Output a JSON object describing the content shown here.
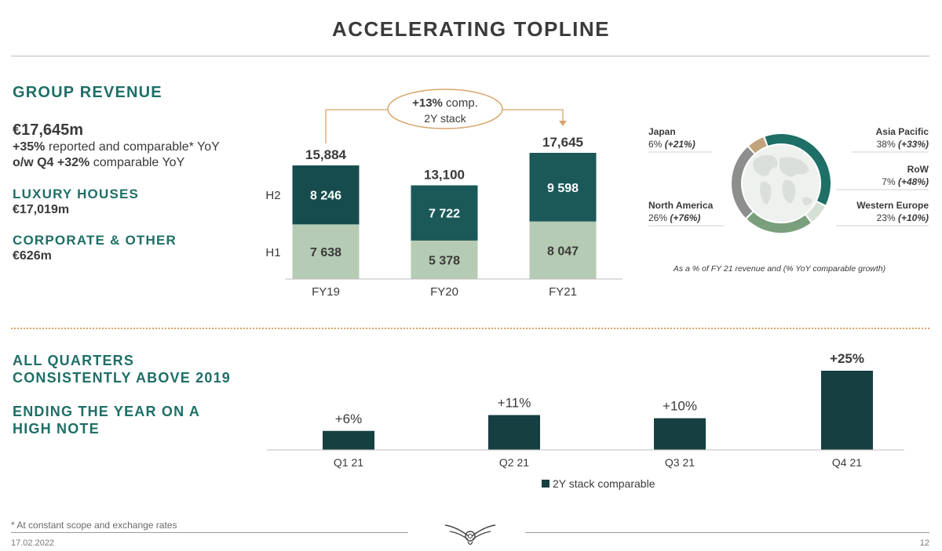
{
  "title": "ACCELERATING TOPLINE",
  "left_panel": {
    "group_revenue_heading": "GROUP REVENUE",
    "group_revenue_value": "€17,645m",
    "line1_bold": "+35%",
    "line1_rest": " reported and comparable* YoY",
    "line2_bold": "o/w Q4 +32%",
    "line2_rest": " comparable YoY",
    "luxury_heading": "LUXURY HOUSES",
    "luxury_value": "€17,019m",
    "corporate_heading": "CORPORATE & OTHER",
    "corporate_value": "€626m"
  },
  "bottom_left": {
    "heading1_line1": "ALL QUARTERS",
    "heading1_line2": "CONSISTENTLY ABOVE 2019",
    "heading2_line1": "ENDING THE YEAR ON A",
    "heading2_line2": "HIGH NOTE"
  },
  "stack_callout": {
    "bold": "+13%",
    "rest": " comp.",
    "line2": "2Y stack"
  },
  "colors": {
    "h2": "#1b5959",
    "h2_dark": "#174c4e",
    "h1": "#b6cbb3",
    "accent_teal": "#1e6f66",
    "quarter_bar": "#163f42",
    "callout": "#d8a46a",
    "asia_pacific": "#1e6f66",
    "row": "#d7e0d6",
    "western_europe": "#7a9f7c",
    "north_america": "#8e8e8e",
    "japan": "#c2a27b"
  },
  "donut": {
    "footnote": "As a % of FY 21 revenue and (% YoY comparable growth)",
    "regions": [
      {
        "name": "Asia Pacific",
        "share": "38%",
        "growth": "(+33%)"
      },
      {
        "name": "RoW",
        "share": "7%",
        "growth": "(+48%)"
      },
      {
        "name": "Western Europe",
        "share": "23%",
        "growth": "(+10%)"
      },
      {
        "name": "North America",
        "share": "26%",
        "growth": "(+76%)"
      },
      {
        "name": "Japan",
        "share": "6%",
        "growth": "(+21%)"
      }
    ]
  },
  "chart_data": [
    {
      "type": "bar",
      "stacked": true,
      "categories": [
        "FY19",
        "FY20",
        "FY21"
      ],
      "series": [
        {
          "name": "H1",
          "values": [
            7638,
            5378,
            8047
          ],
          "labels": [
            "7 638",
            "5 378",
            "8 047"
          ]
        },
        {
          "name": "H2",
          "values": [
            8246,
            7722,
            9598
          ],
          "labels": [
            "8 246",
            "7 722",
            "9 598"
          ]
        }
      ],
      "totals": [
        15884,
        13100,
        17645
      ],
      "total_labels": [
        "15,884",
        "13,100",
        "17,645"
      ]
    },
    {
      "type": "pie",
      "categories": [
        "Asia Pacific",
        "RoW",
        "Western Europe",
        "North America",
        "Japan"
      ],
      "values": [
        38,
        7,
        23,
        26,
        6
      ]
    },
    {
      "type": "bar",
      "categories": [
        "Q1 21",
        "Q2 21",
        "Q3 21",
        "Q4 21"
      ],
      "series": [
        {
          "name": "2Y stack comparable",
          "values": [
            6,
            11,
            10,
            25
          ]
        }
      ],
      "value_labels": [
        "+6%",
        "+11%",
        "+10%",
        "+25%"
      ],
      "legend_position": "bottom"
    }
  ],
  "footer": {
    "footnote": "* At constant scope and exchange rates",
    "date": "17.02.2022",
    "page": "12"
  }
}
